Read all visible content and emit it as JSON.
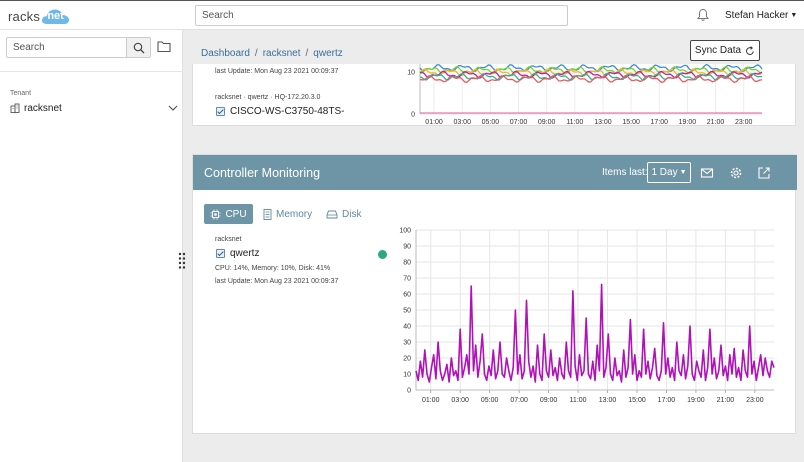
{
  "header": {
    "logo_text": "racks",
    "logo_cloud_text": "net",
    "search_placeholder": "Search",
    "user_name": "Stefan Hacker",
    "icons": {
      "notifications": "bell-icon",
      "user_caret": "caret-down-icon"
    }
  },
  "sidebar": {
    "search_placeholder": "Search",
    "tenant_label": "Tenant",
    "tenant_name": "racksnet",
    "icons": {
      "search": "search-icon",
      "folder": "folder-icon",
      "tenant": "building-icon",
      "expand": "chevron-down-icon",
      "drag": "drag-handle-icon"
    }
  },
  "breadcrumb": [
    {
      "label": "Dashboard"
    },
    {
      "label": "racksnet"
    },
    {
      "label": "qwertz"
    }
  ],
  "sync_button": {
    "label": "Sync Data",
    "icon": "refresh-icon"
  },
  "switch_card": {
    "last_update": "last Update: Mon Aug 23 2021 00:09:37",
    "device_path": "racksnet · qwertz · HQ-172.20.3.0",
    "device_name": "CISCO-WS-C3750-48TS-",
    "mini_chart": {
      "y_ticks": [
        "10",
        "0"
      ],
      "x_ticks": [
        "01:00",
        "03:00",
        "05:00",
        "07:00",
        "09:00",
        "11:00",
        "13:00",
        "15:00",
        "17:00",
        "19:00",
        "21:00",
        "23:00"
      ],
      "series_colors": [
        "#3a8be0",
        "#7bd12a",
        "#f5b623",
        "#c51ea5",
        "#2fb3a0",
        "#e85a5a"
      ]
    }
  },
  "controller_monitoring": {
    "title": "Controller Monitoring",
    "items_last_label": "Items last:",
    "range_value": "1 Day",
    "header_icons": [
      "envelope-icon",
      "gear-icon",
      "export-icon"
    ],
    "tabs": [
      {
        "label": "CPU",
        "icon": "cpu-icon",
        "active": true
      },
      {
        "label": "Memory",
        "icon": "memory-icon",
        "active": false
      },
      {
        "label": "Disk",
        "icon": "disk-icon",
        "active": false
      }
    ],
    "tenant": "racksnet",
    "controller_name": "qwertz",
    "stats": "CPU: 14%, Memory: 10%, Disk: 41%",
    "last_update": "last Update: Mon Aug 23 2021 00:09:37",
    "status_color": "#2aa884"
  },
  "chart_data": {
    "type": "line",
    "ylim": [
      0,
      100
    ],
    "y_ticks": [
      0,
      10,
      20,
      30,
      40,
      50,
      60,
      70,
      80,
      90,
      100
    ],
    "x_tick_labels": [
      "01:00",
      "03:00",
      "05:00",
      "07:00",
      "09:00",
      "11:00",
      "13:00",
      "15:00",
      "17:00",
      "19:00",
      "21:00",
      "23:00"
    ],
    "x_range_hours": [
      0.0,
      24.3
    ],
    "grid": true,
    "series": [
      {
        "color": "#b012b8",
        "points": [
          [
            0.0,
            12
          ],
          [
            0.15,
            6
          ],
          [
            0.3,
            18
          ],
          [
            0.45,
            8
          ],
          [
            0.6,
            25
          ],
          [
            0.75,
            10
          ],
          [
            0.9,
            5
          ],
          [
            1.05,
            14
          ],
          [
            1.2,
            22
          ],
          [
            1.35,
            7
          ],
          [
            1.5,
            30
          ],
          [
            1.65,
            12
          ],
          [
            1.8,
            6
          ],
          [
            1.95,
            10
          ],
          [
            2.1,
            16
          ],
          [
            2.25,
            5
          ],
          [
            2.4,
            20
          ],
          [
            2.55,
            9
          ],
          [
            2.7,
            12
          ],
          [
            2.85,
            6
          ],
          [
            3.0,
            38
          ],
          [
            3.15,
            8
          ],
          [
            3.3,
            14
          ],
          [
            3.45,
            22
          ],
          [
            3.6,
            10
          ],
          [
            3.75,
            65
          ],
          [
            3.9,
            12
          ],
          [
            4.05,
            28
          ],
          [
            4.2,
            8
          ],
          [
            4.35,
            18
          ],
          [
            4.5,
            35
          ],
          [
            4.65,
            10
          ],
          [
            4.8,
            6
          ],
          [
            4.95,
            15
          ],
          [
            5.1,
            9
          ],
          [
            5.25,
            25
          ],
          [
            5.4,
            7
          ],
          [
            5.55,
            12
          ],
          [
            5.7,
            30
          ],
          [
            5.85,
            10
          ],
          [
            6.0,
            8
          ],
          [
            6.15,
            20
          ],
          [
            6.3,
            12
          ],
          [
            6.45,
            6
          ],
          [
            6.6,
            14
          ],
          [
            6.75,
            50
          ],
          [
            6.9,
            10
          ],
          [
            7.05,
            22
          ],
          [
            7.2,
            7
          ],
          [
            7.35,
            12
          ],
          [
            7.5,
            56
          ],
          [
            7.65,
            18
          ],
          [
            7.8,
            8
          ],
          [
            7.95,
            15
          ],
          [
            8.1,
            5
          ],
          [
            8.25,
            28
          ],
          [
            8.4,
            10
          ],
          [
            8.55,
            6
          ],
          [
            8.7,
            35
          ],
          [
            8.85,
            12
          ],
          [
            9.0,
            8
          ],
          [
            9.15,
            25
          ],
          [
            9.3,
            9
          ],
          [
            9.45,
            14
          ],
          [
            9.6,
            6
          ],
          [
            9.75,
            20
          ],
          [
            9.9,
            10
          ],
          [
            10.05,
            7
          ],
          [
            10.2,
            30
          ],
          [
            10.35,
            12
          ],
          [
            10.5,
            8
          ],
          [
            10.65,
            62
          ],
          [
            10.8,
            15
          ],
          [
            10.95,
            6
          ],
          [
            11.1,
            22
          ],
          [
            11.25,
            9
          ],
          [
            11.4,
            12
          ],
          [
            11.55,
            45
          ],
          [
            11.7,
            10
          ],
          [
            11.85,
            7
          ],
          [
            12.0,
            18
          ],
          [
            12.15,
            6
          ],
          [
            12.3,
            28
          ],
          [
            12.45,
            12
          ],
          [
            12.6,
            66
          ],
          [
            12.75,
            8
          ],
          [
            12.9,
            14
          ],
          [
            13.05,
            35
          ],
          [
            13.2,
            10
          ],
          [
            13.35,
            6
          ],
          [
            13.5,
            20
          ],
          [
            13.65,
            9
          ],
          [
            13.8,
            12
          ],
          [
            13.95,
            5
          ],
          [
            14.1,
            25
          ],
          [
            14.25,
            8
          ],
          [
            14.4,
            14
          ],
          [
            14.55,
            44
          ],
          [
            14.7,
            10
          ],
          [
            14.85,
            22
          ],
          [
            15.0,
            6
          ],
          [
            15.15,
            12
          ],
          [
            15.3,
            8
          ],
          [
            15.45,
            38
          ],
          [
            15.6,
            10
          ],
          [
            15.75,
            18
          ],
          [
            15.9,
            7
          ],
          [
            16.05,
            14
          ],
          [
            16.2,
            26
          ],
          [
            16.35,
            9
          ],
          [
            16.5,
            6
          ],
          [
            16.65,
            12
          ],
          [
            16.8,
            42
          ],
          [
            16.95,
            10
          ],
          [
            17.1,
            20
          ],
          [
            17.25,
            8
          ],
          [
            17.4,
            14
          ],
          [
            17.55,
            6
          ],
          [
            17.7,
            30
          ],
          [
            17.85,
            12
          ],
          [
            18.0,
            9
          ],
          [
            18.15,
            22
          ],
          [
            18.3,
            7
          ],
          [
            18.45,
            15
          ],
          [
            18.6,
            40
          ],
          [
            18.75,
            10
          ],
          [
            18.9,
            6
          ],
          [
            19.05,
            18
          ],
          [
            19.2,
            12
          ],
          [
            19.35,
            8
          ],
          [
            19.5,
            25
          ],
          [
            19.65,
            6
          ],
          [
            19.8,
            14
          ],
          [
            19.95,
            38
          ],
          [
            20.1,
            10
          ],
          [
            20.25,
            20
          ],
          [
            20.4,
            7
          ],
          [
            20.55,
            12
          ],
          [
            20.7,
            28
          ],
          [
            20.85,
            9
          ],
          [
            21.0,
            15
          ],
          [
            21.15,
            6
          ],
          [
            21.3,
            22
          ],
          [
            21.45,
            10
          ],
          [
            21.6,
            26
          ],
          [
            21.75,
            8
          ],
          [
            21.9,
            14
          ],
          [
            22.05,
            6
          ],
          [
            22.2,
            25
          ],
          [
            22.35,
            12
          ],
          [
            22.5,
            8
          ],
          [
            22.65,
            40
          ],
          [
            22.8,
            10
          ],
          [
            22.95,
            18
          ],
          [
            23.1,
            6
          ],
          [
            23.25,
            14
          ],
          [
            23.4,
            22
          ],
          [
            23.55,
            9
          ],
          [
            23.7,
            20
          ],
          [
            23.85,
            12
          ],
          [
            24.0,
            8
          ],
          [
            24.15,
            18
          ],
          [
            24.3,
            14
          ]
        ]
      }
    ]
  }
}
